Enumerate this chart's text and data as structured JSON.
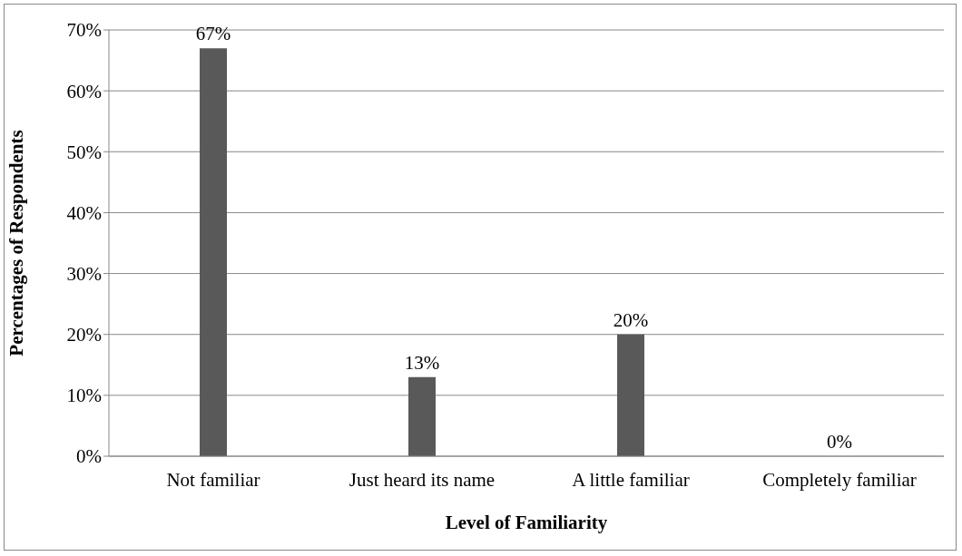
{
  "chart_data": {
    "type": "bar",
    "xlabel": "Level of Familiarity",
    "ylabel": "Percentages of Respondents",
    "categories": [
      "Not familiar",
      "Just heard its name",
      "A little familiar",
      "Completely familiar"
    ],
    "values": [
      67,
      13,
      20,
      0
    ],
    "value_labels": [
      "67%",
      "13%",
      "20%",
      "0%"
    ],
    "color": "#595959",
    "ylim": [
      0,
      70
    ],
    "yticks": [
      {
        "value": 0,
        "label": "0%"
      },
      {
        "value": 10,
        "label": "10%"
      },
      {
        "value": 20,
        "label": "20%"
      },
      {
        "value": 30,
        "label": "30%"
      },
      {
        "value": 40,
        "label": "40%"
      },
      {
        "value": 50,
        "label": "50%"
      },
      {
        "value": 60,
        "label": "60%"
      },
      {
        "value": 70,
        "label": "70%"
      }
    ],
    "grid": "y"
  }
}
